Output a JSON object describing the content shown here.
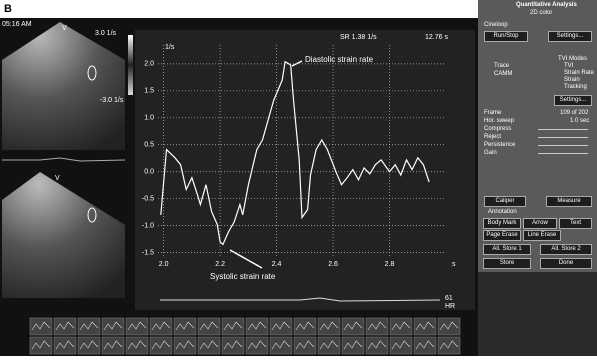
{
  "panel_label": "B",
  "left_panel": {
    "time": "05:16 AM",
    "scale_top": "3.0 1/s",
    "scale_bottom": "-3.0 1/s",
    "view_top": "V",
    "view_bottom": "V"
  },
  "chart_data": {
    "type": "line",
    "y_unit": "1/s",
    "x_unit": "s",
    "readout_sr": "SR 1.38 1/s",
    "readout_time": "12.76 s",
    "annotations": [
      "Diastolic strain rate",
      "Systolic strain rate"
    ],
    "x": [
      1.99,
      2.01,
      2.04,
      2.06,
      2.08,
      2.1,
      2.12,
      2.13,
      2.15,
      2.17,
      2.19,
      2.2,
      2.21,
      2.23,
      2.25,
      2.27,
      2.28,
      2.3,
      2.33,
      2.35,
      2.37,
      2.39,
      2.42,
      2.43,
      2.45,
      2.46,
      2.48,
      2.49,
      2.51,
      2.52,
      2.54,
      2.56,
      2.58,
      2.61,
      2.63,
      2.65,
      2.67,
      2.69,
      2.71,
      2.73,
      2.75,
      2.77,
      2.8,
      2.82,
      2.84,
      2.86,
      2.88,
      2.9,
      2.92,
      2.94
    ],
    "series": [
      {
        "color": "#ffffff",
        "values": [
          -0.8,
          0.41,
          0.26,
          0.13,
          -0.33,
          -0.11,
          -0.43,
          -0.61,
          -0.24,
          -0.74,
          -0.98,
          -1.3,
          -1.35,
          -1.11,
          -0.93,
          -0.61,
          -0.8,
          -0.24,
          0.41,
          0.59,
          0.96,
          1.33,
          1.7,
          2.04,
          1.98,
          1.33,
          0.22,
          -0.85,
          -0.7,
          -0.06,
          0.41,
          0.59,
          0.41,
          0.0,
          -0.24,
          -0.11,
          0.04,
          -0.15,
          0.07,
          -0.04,
          0.13,
          0.22,
          0.0,
          0.13,
          -0.06,
          0.22,
          0.04,
          0.26,
          0.13,
          -0.19
        ]
      }
    ],
    "xlim": [
      1.98,
      3.0
    ],
    "xticks": [
      {
        "value": 2.0,
        "label": "2.0"
      },
      2.2,
      2.4,
      2.6,
      2.8
    ],
    "ylim": [
      -1.6,
      2.35
    ],
    "yticks": [
      {
        "value": 2.0,
        "label": "2.0"
      },
      1.5,
      {
        "value": 1.0,
        "label": "1.0"
      },
      0.5,
      {
        "value": 0.0,
        "label": "0.0"
      },
      -0.5,
      {
        "value": -1.0,
        "label": "-1.0"
      },
      -1.5
    ],
    "grid": true
  },
  "hr": {
    "value": "61",
    "label": "HR"
  },
  "right_panel": {
    "title": "Quantitative Analysis",
    "subtitle": "2D color",
    "cineloop": "Cineloop",
    "buttons_top": [
      "Run/Stop",
      "Settings..."
    ],
    "tvi_modes_title": "TVI Modes",
    "left_options": [
      "Trace",
      "CAMM"
    ],
    "tvi_modes": [
      "TVI",
      "Strain Rate",
      "Strain",
      "Tracking"
    ],
    "tvi_settings": "Settings...",
    "frame_label": "Frame",
    "frame_value": "109 of 202",
    "sliders": [
      "Hor. sweep",
      "Compress",
      "Reject",
      "Persistence",
      "Gain"
    ],
    "sweep_value": "1.0 sec",
    "buttons_mid": [
      "Caliper",
      "Measure"
    ],
    "annotation": "Annotation",
    "annotation_buttons": [
      "Body Mark",
      "Arrow",
      "Text",
      "Page Erase",
      "Line Erase"
    ],
    "store_buttons": [
      "All. Store 1",
      "All. Store 2",
      "Store",
      "Done"
    ]
  }
}
